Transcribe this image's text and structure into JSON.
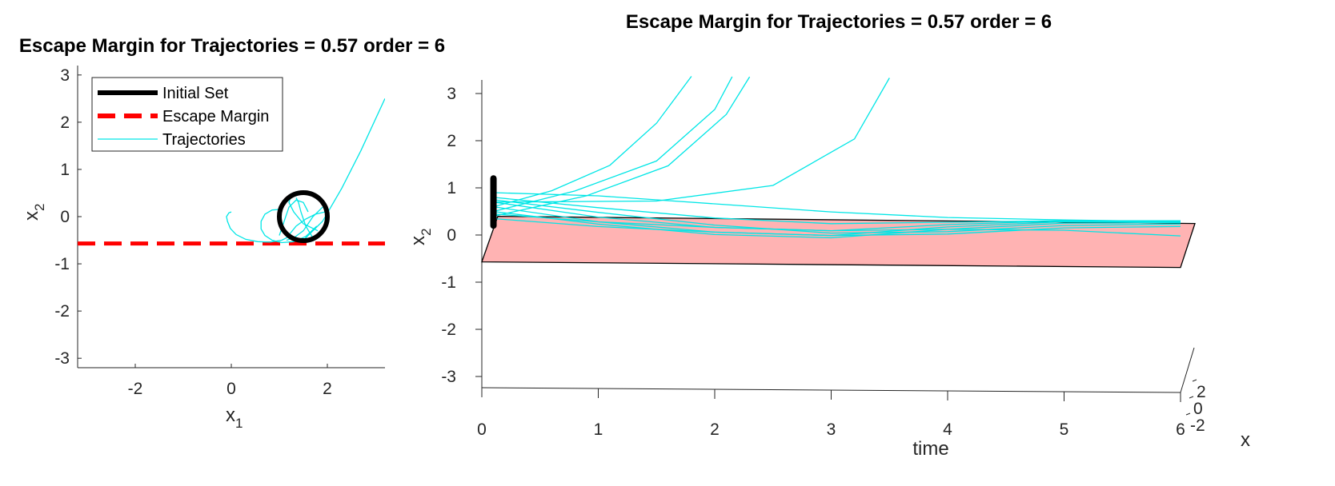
{
  "chart_data": [
    {
      "type": "line",
      "title": "Escape Margin for Trajectories = 0.57 order = 6",
      "xlabel": "x",
      "xlabel_subscript": "1",
      "ylabel": "x",
      "ylabel_subscript": "2",
      "xlim": [
        -3.2,
        3.2
      ],
      "ylim": [
        -3.2,
        3.2
      ],
      "xticks": [
        -2,
        0,
        2
      ],
      "yticks": [
        -3,
        -2,
        -1,
        0,
        1,
        2,
        3
      ],
      "legend": {
        "placement": "top-left",
        "entries": [
          "Initial Set",
          "Escape Margin",
          "Trajectories"
        ]
      },
      "colors": {
        "initial_set": "#000000",
        "escape_margin": "#ff0000",
        "trajectories": "#00e6e6"
      },
      "escape_margin": -0.57,
      "initial_set": {
        "type": "circle",
        "center": [
          1.5,
          0.0
        ],
        "radius": 0.5
      },
      "series": [
        {
          "x": [
            1.78,
            1.55,
            1.3,
            1.05,
            0.85,
            0.7,
            0.62,
            0.62,
            0.7,
            0.85,
            1.0
          ],
          "y": [
            -0.2,
            -0.42,
            -0.53,
            -0.55,
            -0.5,
            -0.4,
            -0.26,
            -0.1,
            0.05,
            0.14,
            0.15
          ]
        },
        {
          "x": [
            1.25,
            1.05,
            0.8,
            0.55,
            0.3,
            0.1,
            -0.02,
            -0.08,
            -0.1,
            -0.05,
            0.0
          ],
          "y": [
            -0.4,
            -0.5,
            -0.54,
            -0.53,
            -0.48,
            -0.38,
            -0.25,
            -0.1,
            0.0,
            0.08,
            0.1
          ]
        },
        {
          "x": [
            1.5,
            1.9,
            2.3,
            2.7,
            3.2
          ],
          "y": [
            -0.5,
            -0.1,
            0.6,
            1.4,
            2.5
          ]
        },
        {
          "x": [
            1.0,
            1.2,
            1.35,
            1.5,
            1.6
          ],
          "y": [
            -0.4,
            0.2,
            0.35,
            0.3,
            0.1
          ]
        },
        {
          "x": [
            1.8,
            1.5,
            1.3,
            1.2,
            1.25
          ],
          "y": [
            -0.3,
            -0.15,
            0.1,
            0.3,
            0.45
          ]
        },
        {
          "x": [
            1.15,
            1.35,
            1.55,
            1.75,
            1.95
          ],
          "y": [
            -0.45,
            -0.2,
            -0.05,
            0.05,
            0.1
          ]
        },
        {
          "x": [
            1.9,
            1.7,
            1.5,
            1.3,
            1.15
          ],
          "y": [
            0.2,
            0.0,
            -0.3,
            -0.45,
            -0.5
          ]
        },
        {
          "x": [
            1.7,
            1.55,
            1.45,
            1.4,
            1.35
          ],
          "y": [
            -0.45,
            -0.2,
            0.1,
            0.3,
            0.4
          ]
        }
      ]
    },
    {
      "type": "line",
      "title": "Escape Margin for Trajectories = 0.57 order = 6",
      "xlabel": "time",
      "ylabel": "x",
      "ylabel_subscript": "2",
      "zlabel": "x",
      "xlim": [
        0,
        6
      ],
      "ylim": [
        -3.3,
        3.3
      ],
      "xticks": [
        0,
        1,
        2,
        3,
        4,
        5,
        6
      ],
      "yticks": [
        -3,
        -2,
        -1,
        0,
        1,
        2,
        3
      ],
      "zticks": [
        -2,
        0,
        2
      ],
      "escape_margin_plane": {
        "value": -0.57,
        "color": "#ffb3b3"
      },
      "initial_set_time": 0.1,
      "initial_set_range": [
        0.2,
        1.2
      ],
      "colors": {
        "initial_set": "#000000",
        "trajectories": "#00e6e6"
      },
      "series": [
        {
          "x": [
            0.1,
            0.6,
            1.1,
            1.5,
            1.8
          ],
          "y": [
            0.6,
            0.95,
            1.5,
            2.4,
            3.4
          ]
        },
        {
          "x": [
            0.1,
            0.8,
            1.5,
            2.0,
            2.15
          ],
          "y": [
            0.5,
            0.95,
            1.6,
            2.7,
            3.4
          ]
        },
        {
          "x": [
            0.1,
            0.9,
            1.6,
            2.1,
            2.3
          ],
          "y": [
            0.4,
            0.85,
            1.5,
            2.6,
            3.4
          ]
        },
        {
          "x": [
            0.1,
            1.5,
            2.5,
            3.2,
            3.5
          ],
          "y": [
            0.7,
            0.75,
            1.1,
            2.1,
            3.4
          ]
        },
        {
          "x": [
            0.1,
            1.0,
            2.0,
            3.0,
            4.0,
            5.0,
            6.0
          ],
          "y": [
            0.9,
            0.85,
            0.7,
            0.55,
            0.45,
            0.42,
            0.4
          ]
        },
        {
          "x": [
            0.1,
            1.0,
            2.0,
            3.0,
            4.0,
            5.0,
            6.0
          ],
          "y": [
            0.8,
            0.6,
            0.4,
            0.3,
            0.35,
            0.4,
            0.42
          ]
        },
        {
          "x": [
            0.1,
            1.0,
            2.0,
            3.0,
            4.0,
            5.0,
            6.0
          ],
          "y": [
            0.7,
            0.4,
            0.2,
            0.15,
            0.3,
            0.4,
            0.42
          ]
        },
        {
          "x": [
            0.1,
            1.0,
            2.0,
            3.0,
            4.0,
            5.0,
            6.0
          ],
          "y": [
            0.6,
            0.3,
            0.1,
            0.05,
            0.25,
            0.38,
            0.4
          ]
        },
        {
          "x": [
            0.1,
            1.0,
            2.0,
            3.0,
            4.0,
            5.0,
            6.0
          ],
          "y": [
            0.5,
            0.25,
            0.05,
            0.0,
            0.2,
            0.35,
            0.38
          ]
        },
        {
          "x": [
            0.1,
            1.0,
            2.0,
            3.0,
            4.0,
            5.0,
            6.0
          ],
          "y": [
            0.35,
            0.2,
            0.1,
            0.05,
            0.1,
            0.25,
            0.3
          ]
        },
        {
          "x": [
            0.1,
            1.0,
            2.0,
            3.0,
            4.0,
            5.0,
            6.0
          ],
          "y": [
            0.75,
            0.5,
            0.25,
            0.1,
            0.15,
            0.3,
            0.35
          ]
        },
        {
          "x": [
            0.1,
            1.0,
            2.0,
            3.0,
            4.0,
            5.0,
            6.0
          ],
          "y": [
            0.45,
            0.3,
            0.2,
            0.15,
            0.2,
            0.2,
            0.1
          ]
        }
      ]
    }
  ]
}
